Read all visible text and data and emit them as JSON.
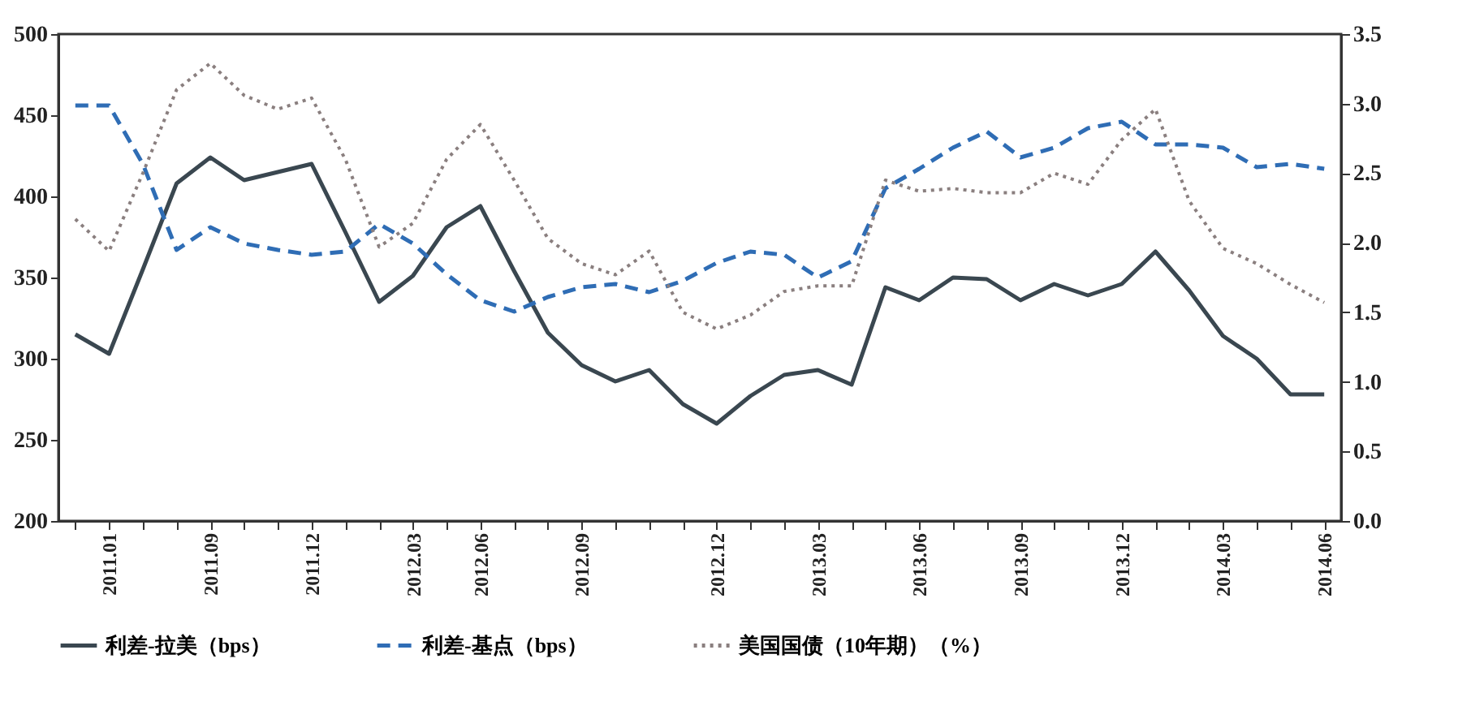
{
  "chart_data": {
    "type": "line",
    "categories": [
      null,
      "2011.01",
      null,
      null,
      "2011.09",
      null,
      null,
      "2011.12",
      null,
      null,
      "2012.03",
      null,
      "2012.06",
      null,
      null,
      "2012.09",
      null,
      null,
      null,
      "2012.12",
      null,
      null,
      "2013.03",
      null,
      null,
      "2013.06",
      null,
      null,
      "2013.09",
      null,
      null,
      "2013.12",
      null,
      null,
      "2014.03",
      null,
      null,
      "2014.06"
    ],
    "series": [
      {
        "name": "利差-拉美（bps）",
        "color": "#3a4750",
        "line_style": "solid",
        "values": [
          315,
          303,
          355,
          408,
          424,
          410,
          415,
          420,
          378,
          335,
          351,
          381,
          394,
          354,
          316,
          296,
          286,
          293,
          272,
          260,
          277,
          290,
          293,
          284,
          344,
          336,
          350,
          349,
          336,
          346,
          339,
          346,
          366,
          342,
          314,
          300,
          278,
          278
        ]
      },
      {
        "name": "利差-基点（bps）",
        "color": "#2f6db5",
        "line_style": "dashed",
        "values": [
          456,
          456,
          420,
          367,
          381,
          371,
          367,
          364,
          366,
          383,
          371,
          352,
          336,
          329,
          338,
          344,
          346,
          341,
          348,
          359,
          366,
          364,
          350,
          360,
          405,
          417,
          430,
          440,
          424,
          430,
          442,
          446,
          432,
          432,
          430,
          418,
          420,
          417
        ]
      },
      {
        "name": "美国国债（10年期）（%）",
        "color": "#8a7f7f",
        "line_style": "dotted",
        "axis": "y2",
        "values": [
          2.17,
          1.94,
          2.5,
          3.1,
          3.29,
          3.06,
          2.96,
          3.04,
          2.6,
          1.97,
          2.14,
          2.6,
          2.85,
          2.45,
          2.03,
          1.85,
          1.77,
          1.94,
          1.5,
          1.38,
          1.48,
          1.65,
          1.69,
          1.69,
          2.45,
          2.37,
          2.39,
          2.36,
          2.36,
          2.5,
          2.42,
          2.74,
          2.96,
          2.3,
          1.96,
          1.85,
          1.7,
          1.57
        ]
      }
    ],
    "ylim": [
      200,
      500
    ],
    "yticks": [
      200,
      250,
      300,
      350,
      400,
      450,
      500
    ],
    "y2lim": [
      0,
      3.5
    ],
    "y2ticks": [
      {
        "value": 0,
        "label": "0.0"
      },
      {
        "value": 0.5,
        "label": "0.5"
      },
      {
        "value": 1,
        "label": "1.0"
      },
      {
        "value": 1.5,
        "label": "1.5"
      },
      {
        "value": 2,
        "label": "2.0"
      },
      {
        "value": 2.5,
        "label": "2.5"
      },
      {
        "value": 3,
        "label": "3.0"
      },
      {
        "value": 3.5,
        "label": "3.5"
      }
    ],
    "legend": "bottom"
  }
}
